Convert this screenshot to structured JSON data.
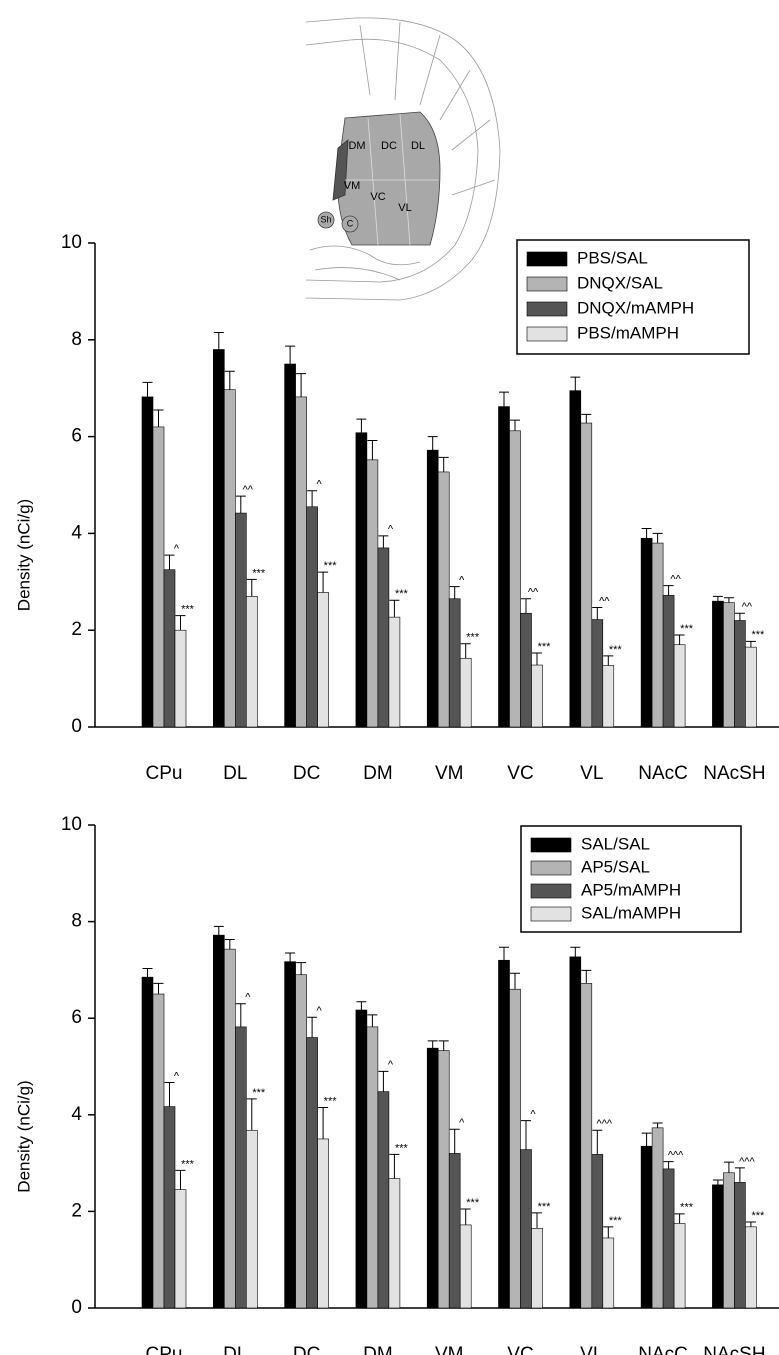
{
  "diagram": {
    "labels": [
      "DM",
      "DC",
      "DL",
      "VM",
      "VC",
      "VL",
      "Sh",
      "C"
    ]
  },
  "chart_data": [
    {
      "type": "bar",
      "y_label": "Density (nCi/g)",
      "ylim": [
        0,
        10
      ],
      "yticks": [
        0,
        2,
        4,
        6,
        8,
        10
      ],
      "legend": "upper right",
      "categories": [
        "CPu",
        "DL",
        "DC",
        "DM",
        "VM",
        "VC",
        "VL",
        "NAcC",
        "NAcSH"
      ],
      "series": [
        {
          "name": "PBS/SAL",
          "color": "#000000",
          "values": [
            6.82,
            7.8,
            7.5,
            6.08,
            5.72,
            6.62,
            6.95,
            3.9,
            2.6
          ],
          "errors": [
            0.3,
            0.35,
            0.37,
            0.28,
            0.28,
            0.3,
            0.28,
            0.2,
            0.1
          ]
        },
        {
          "name": "DNQX/SAL",
          "color": "#b4b4b4",
          "values": [
            6.2,
            6.97,
            6.82,
            5.52,
            5.27,
            6.12,
            6.28,
            3.8,
            2.57
          ],
          "errors": [
            0.35,
            0.38,
            0.48,
            0.4,
            0.3,
            0.22,
            0.18,
            0.2,
            0.1
          ]
        },
        {
          "name": "DNQX/mAMPH",
          "color": "#555555",
          "values": [
            3.25,
            4.42,
            4.55,
            3.7,
            2.65,
            2.35,
            2.22,
            2.72,
            2.2
          ],
          "errors": [
            0.3,
            0.35,
            0.33,
            0.25,
            0.25,
            0.3,
            0.25,
            0.2,
            0.15
          ],
          "annotations": [
            "^",
            "^^",
            "^",
            "^",
            "^",
            "^^",
            "^^",
            "^^",
            "^^"
          ]
        },
        {
          "name": "PBS/mAMPH",
          "color": "#e2e2e2",
          "values": [
            2.0,
            2.7,
            2.78,
            2.27,
            1.42,
            1.28,
            1.27,
            1.7,
            1.65
          ],
          "errors": [
            0.3,
            0.35,
            0.42,
            0.35,
            0.3,
            0.25,
            0.2,
            0.2,
            0.12
          ],
          "annotations": [
            "***",
            "***",
            "***",
            "***",
            "***",
            "***",
            "***",
            "***",
            "***"
          ]
        }
      ]
    },
    {
      "type": "bar",
      "y_label": "Density (nCi/g)",
      "ylim": [
        0,
        10
      ],
      "yticks": [
        0,
        2,
        4,
        6,
        8,
        10
      ],
      "legend": "upper right",
      "categories": [
        "CPu",
        "DL",
        "DC",
        "DM",
        "VM",
        "VC",
        "VL",
        "NAcC",
        "NAcSH"
      ],
      "series": [
        {
          "name": "SAL/SAL",
          "color": "#000000",
          "values": [
            6.85,
            7.72,
            7.17,
            6.17,
            5.38,
            7.2,
            7.27,
            3.35,
            2.55
          ],
          "errors": [
            0.18,
            0.18,
            0.18,
            0.17,
            0.15,
            0.27,
            0.2,
            0.27,
            0.1
          ]
        },
        {
          "name": "AP5/SAL",
          "color": "#b4b4b4",
          "values": [
            6.5,
            7.43,
            6.9,
            5.82,
            5.33,
            6.6,
            6.72,
            3.73,
            2.8
          ],
          "errors": [
            0.22,
            0.2,
            0.25,
            0.25,
            0.2,
            0.33,
            0.27,
            0.1,
            0.22
          ]
        },
        {
          "name": "AP5/mAMPH",
          "color": "#555555",
          "values": [
            4.17,
            5.82,
            5.6,
            4.48,
            3.2,
            3.28,
            3.18,
            2.88,
            2.6
          ],
          "errors": [
            0.5,
            0.48,
            0.42,
            0.42,
            0.5,
            0.6,
            0.5,
            0.15,
            0.3
          ],
          "annotations": [
            "^",
            "^",
            "^",
            "^",
            "^",
            "^",
            "^^^",
            "^^^",
            "^^^"
          ]
        },
        {
          "name": "SAL/mAMPH",
          "color": "#e2e2e2",
          "values": [
            2.45,
            3.68,
            3.5,
            2.68,
            1.72,
            1.65,
            1.45,
            1.75,
            1.68
          ],
          "errors": [
            0.4,
            0.65,
            0.65,
            0.5,
            0.33,
            0.32,
            0.23,
            0.2,
            0.1
          ],
          "annotations": [
            "***",
            "***",
            "***",
            "***",
            "***",
            "***",
            "***",
            "***",
            "***"
          ]
        }
      ]
    }
  ]
}
